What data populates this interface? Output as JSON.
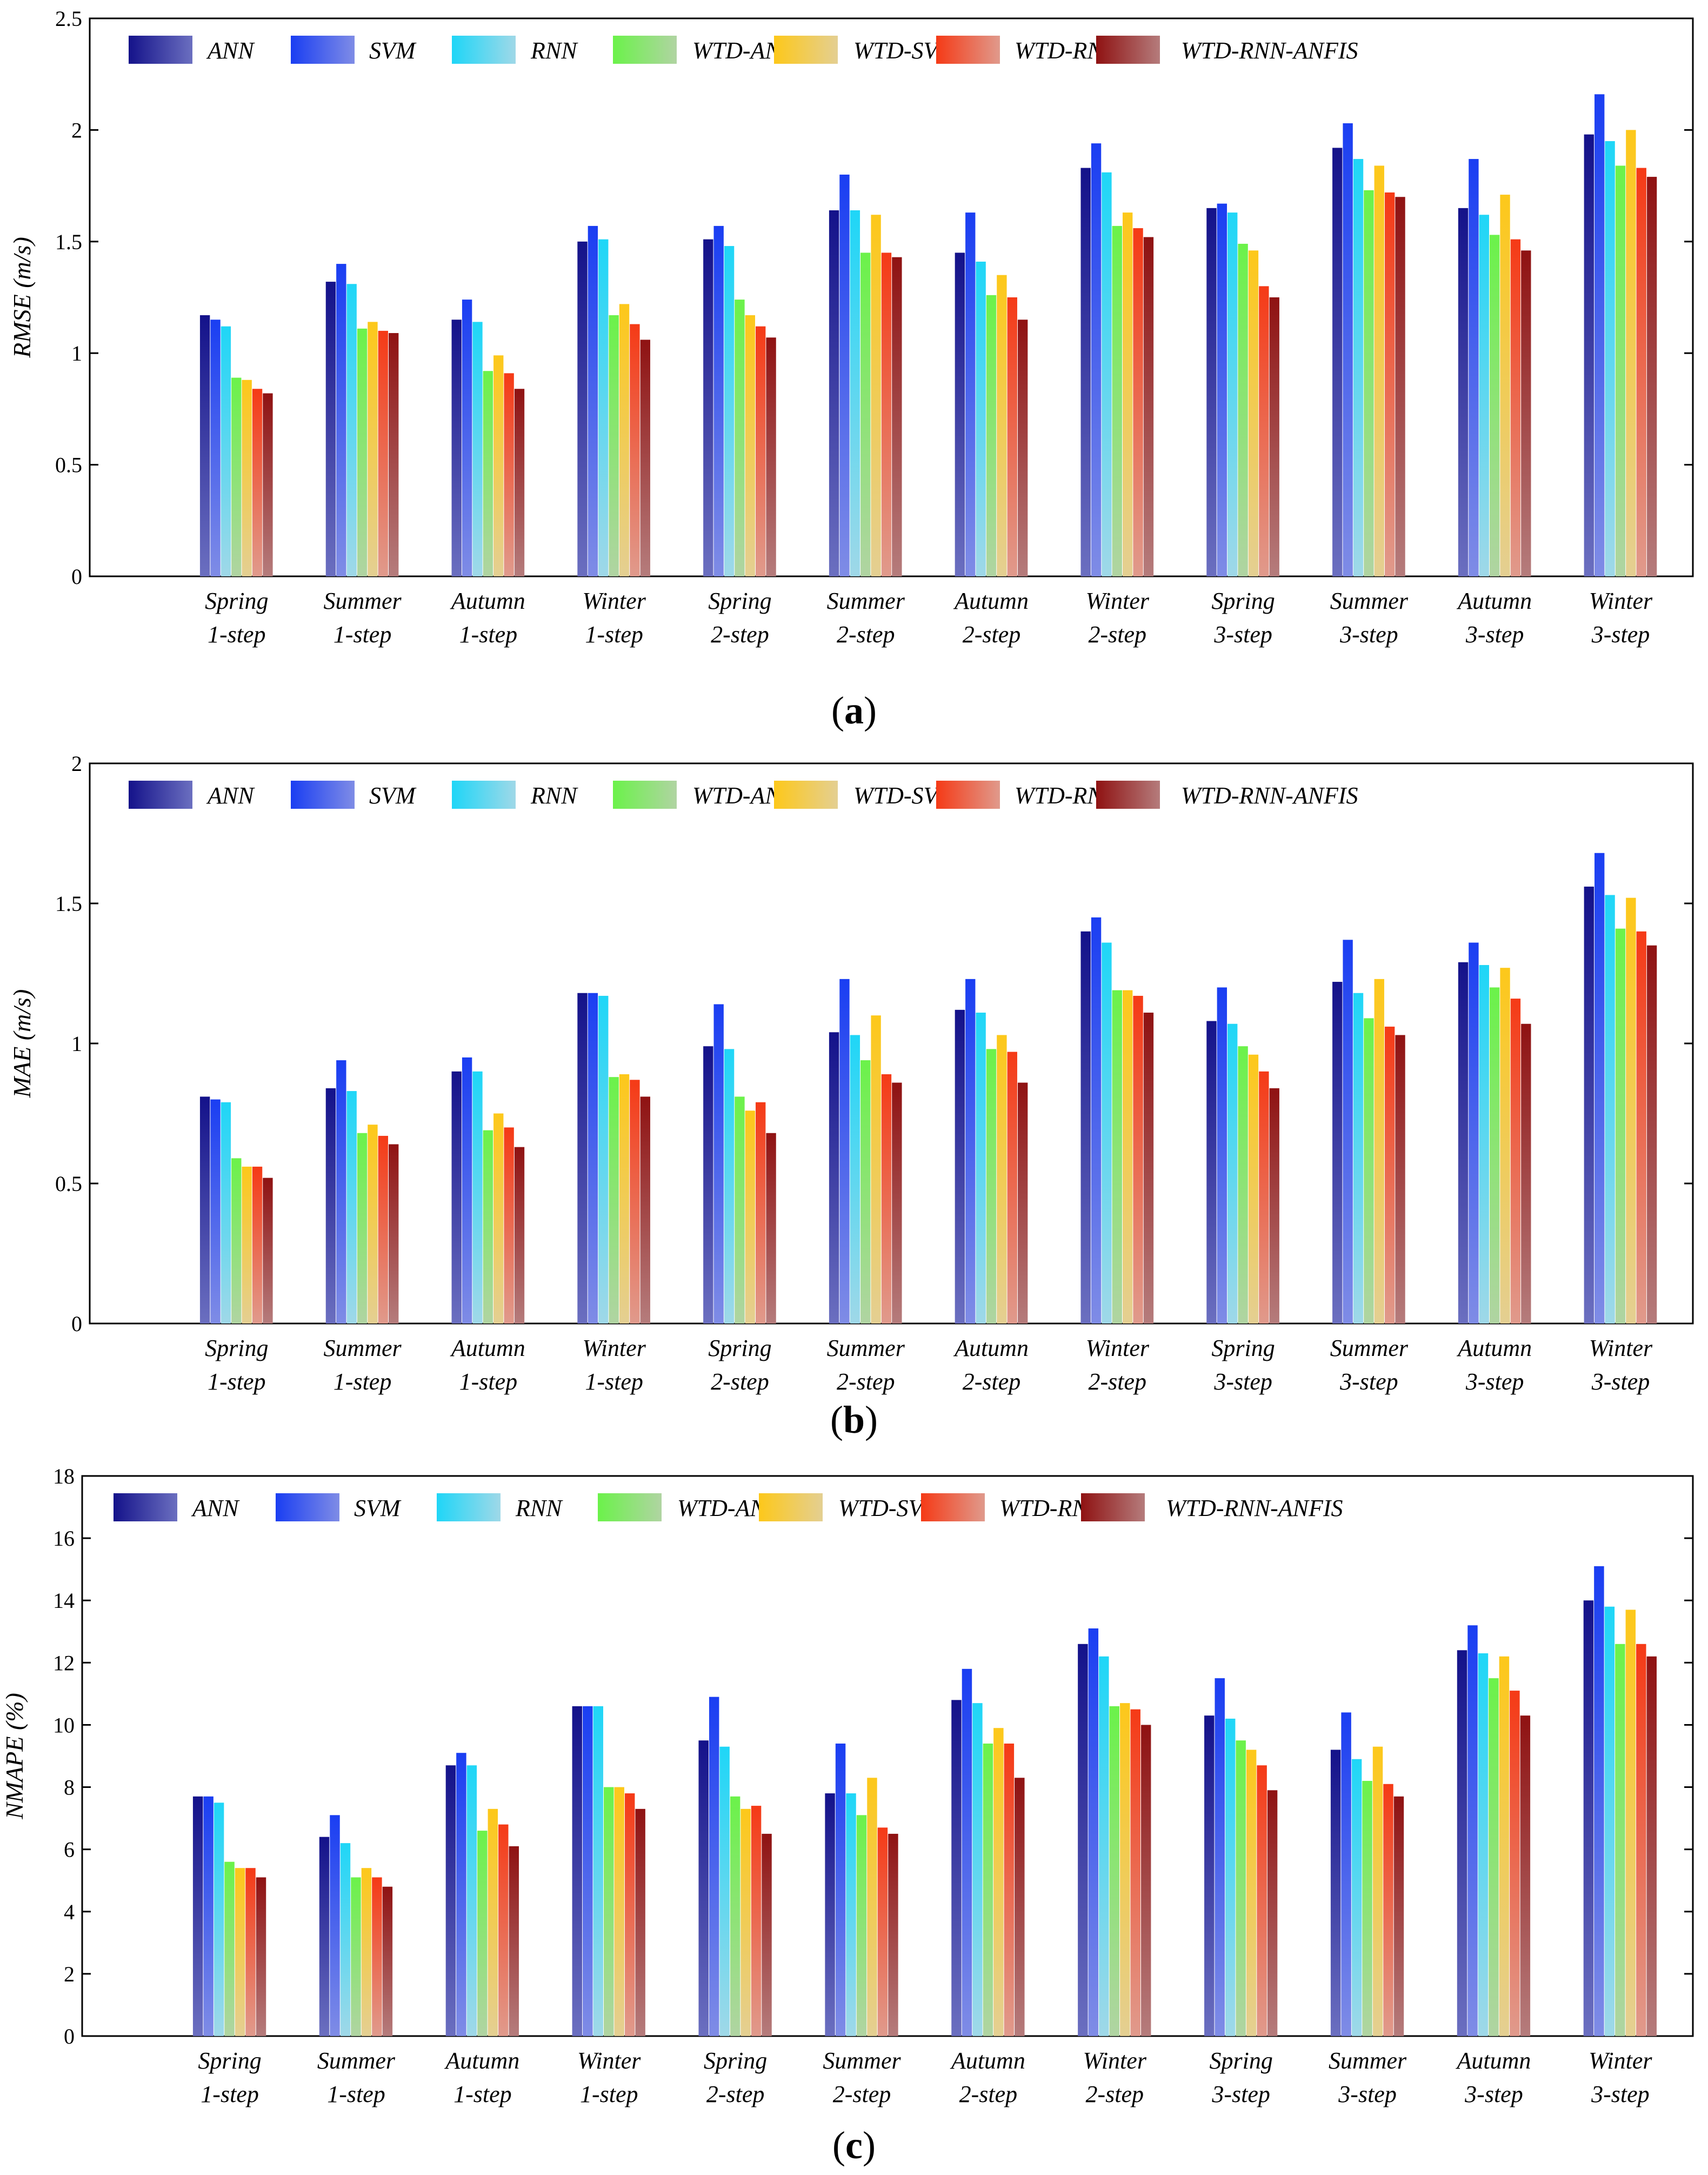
{
  "series_colors": [
    {
      "top": "#14128a",
      "bottom": "#6b6fc0"
    },
    {
      "top": "#1a3ef2",
      "bottom": "#7f8ce6"
    },
    {
      "top": "#1fd6f7",
      "bottom": "#9fd8e8"
    },
    {
      "top": "#6bf24a",
      "bottom": "#b0d4a2"
    },
    {
      "top": "#fdc81a",
      "bottom": "#e4cf92"
    },
    {
      "top": "#f53a16",
      "bottom": "#e09a8c"
    },
    {
      "top": "#8f1212",
      "bottom": "#b57c7c"
    }
  ],
  "chart_data": [
    {
      "type": "bar",
      "panel_label": {
        "open": "(",
        "letter": "a",
        "close": ")"
      },
      "ylabel": "RMSE (m/s)",
      "ylim": [
        0,
        2.5
      ],
      "yticks": [
        "0",
        "0.5",
        "1",
        "1.5",
        "2",
        "2.5"
      ],
      "legend": [
        "ANN",
        "SVM",
        "RNN",
        "WTD-ANN",
        "WTD-SVM",
        "WTD-RNN",
        "WTD-RNN-ANFIS"
      ],
      "categories": [
        [
          "Spring",
          "1-step"
        ],
        [
          "Summer",
          "1-step"
        ],
        [
          "Autumn",
          "1-step"
        ],
        [
          "Winter",
          "1-step"
        ],
        [
          "Spring",
          "2-step"
        ],
        [
          "Summer",
          "2-step"
        ],
        [
          "Autumn",
          "2-step"
        ],
        [
          "Winter",
          "2-step"
        ],
        [
          "Spring",
          "3-step"
        ],
        [
          "Summer",
          "3-step"
        ],
        [
          "Autumn",
          "3-step"
        ],
        [
          "Winter",
          "3-step"
        ]
      ],
      "series": [
        {
          "name": "ANN",
          "values": [
            1.17,
            1.32,
            1.15,
            1.5,
            1.51,
            1.64,
            1.45,
            1.83,
            1.65,
            1.92,
            1.65,
            1.98
          ]
        },
        {
          "name": "SVM",
          "values": [
            1.15,
            1.4,
            1.24,
            1.57,
            1.57,
            1.8,
            1.63,
            1.94,
            1.67,
            2.03,
            1.87,
            2.16
          ]
        },
        {
          "name": "RNN",
          "values": [
            1.12,
            1.31,
            1.14,
            1.51,
            1.48,
            1.64,
            1.41,
            1.81,
            1.63,
            1.87,
            1.62,
            1.95
          ]
        },
        {
          "name": "WTD-ANN",
          "values": [
            0.89,
            1.11,
            0.92,
            1.17,
            1.24,
            1.45,
            1.26,
            1.57,
            1.49,
            1.73,
            1.53,
            1.84
          ]
        },
        {
          "name": "WTD-SVM",
          "values": [
            0.88,
            1.14,
            0.99,
            1.22,
            1.17,
            1.62,
            1.35,
            1.63,
            1.46,
            1.84,
            1.71,
            2.0
          ]
        },
        {
          "name": "WTD-RNN",
          "values": [
            0.84,
            1.1,
            0.91,
            1.13,
            1.12,
            1.45,
            1.25,
            1.56,
            1.3,
            1.72,
            1.51,
            1.83
          ]
        },
        {
          "name": "WTD-RNN-ANFIS",
          "values": [
            0.82,
            1.09,
            0.84,
            1.06,
            1.07,
            1.43,
            1.15,
            1.52,
            1.25,
            1.7,
            1.46,
            1.79
          ]
        }
      ]
    },
    {
      "type": "bar",
      "panel_label": {
        "open": "(",
        "letter": "b",
        "close": ")"
      },
      "ylabel": "MAE (m/s)",
      "ylim": [
        0,
        2
      ],
      "yticks": [
        "0",
        "0.5",
        "1",
        "1.5",
        "2"
      ],
      "legend": [
        "ANN",
        "SVM",
        "RNN",
        "WTD-ANN",
        "WTD-SVM",
        "WTD-RNN",
        "WTD-RNN-ANFIS"
      ],
      "categories": [
        [
          "Spring",
          "1-step"
        ],
        [
          "Summer",
          "1-step"
        ],
        [
          "Autumn",
          "1-step"
        ],
        [
          "Winter",
          "1-step"
        ],
        [
          "Spring",
          "2-step"
        ],
        [
          "Summer",
          "2-step"
        ],
        [
          "Autumn",
          "2-step"
        ],
        [
          "Winter",
          "2-step"
        ],
        [
          "Spring",
          "3-step"
        ],
        [
          "Summer",
          "3-step"
        ],
        [
          "Autumn",
          "3-step"
        ],
        [
          "Winter",
          "3-step"
        ]
      ],
      "series": [
        {
          "name": "ANN",
          "values": [
            0.81,
            0.84,
            0.9,
            1.18,
            0.99,
            1.04,
            1.12,
            1.4,
            1.08,
            1.22,
            1.29,
            1.56
          ]
        },
        {
          "name": "SVM",
          "values": [
            0.8,
            0.94,
            0.95,
            1.18,
            1.14,
            1.23,
            1.23,
            1.45,
            1.2,
            1.37,
            1.36,
            1.68
          ]
        },
        {
          "name": "RNN",
          "values": [
            0.79,
            0.83,
            0.9,
            1.17,
            0.98,
            1.03,
            1.11,
            1.36,
            1.07,
            1.18,
            1.28,
            1.53
          ]
        },
        {
          "name": "WTD-ANN",
          "values": [
            0.59,
            0.68,
            0.69,
            0.88,
            0.81,
            0.94,
            0.98,
            1.19,
            0.99,
            1.09,
            1.2,
            1.41
          ]
        },
        {
          "name": "WTD-SVM",
          "values": [
            0.56,
            0.71,
            0.75,
            0.89,
            0.76,
            1.1,
            1.03,
            1.19,
            0.96,
            1.23,
            1.27,
            1.52
          ]
        },
        {
          "name": "WTD-RNN",
          "values": [
            0.56,
            0.67,
            0.7,
            0.87,
            0.79,
            0.89,
            0.97,
            1.17,
            0.9,
            1.06,
            1.16,
            1.4
          ]
        },
        {
          "name": "WTD-RNN-ANFIS",
          "values": [
            0.52,
            0.64,
            0.63,
            0.81,
            0.68,
            0.86,
            0.86,
            1.11,
            0.84,
            1.03,
            1.07,
            1.35
          ]
        }
      ]
    },
    {
      "type": "bar",
      "panel_label": {
        "open": "(",
        "letter": "c",
        "close": ")"
      },
      "ylabel": "NMAPE (%)",
      "ylim": [
        0,
        18
      ],
      "yticks": [
        "0",
        "2",
        "4",
        "6",
        "8",
        "10",
        "12",
        "14",
        "16",
        "18"
      ],
      "legend": [
        "ANN",
        "SVM",
        "RNN",
        "WTD-ANN",
        "WTD-SVM",
        "WTD-RNN",
        "WTD-RNN-ANFIS"
      ],
      "categories": [
        [
          "Spring",
          "1-step"
        ],
        [
          "Summer",
          "1-step"
        ],
        [
          "Autumn",
          "1-step"
        ],
        [
          "Winter",
          "1-step"
        ],
        [
          "Spring",
          "2-step"
        ],
        [
          "Summer",
          "2-step"
        ],
        [
          "Autumn",
          "2-step"
        ],
        [
          "Winter",
          "2-step"
        ],
        [
          "Spring",
          "3-step"
        ],
        [
          "Summer",
          "3-step"
        ],
        [
          "Autumn",
          "3-step"
        ],
        [
          "Winter",
          "3-step"
        ]
      ],
      "series": [
        {
          "name": "ANN",
          "values": [
            7.7,
            6.4,
            8.7,
            10.6,
            9.5,
            7.8,
            10.8,
            12.6,
            10.3,
            9.2,
            12.4,
            14.0
          ]
        },
        {
          "name": "SVM",
          "values": [
            7.7,
            7.1,
            9.1,
            10.6,
            10.9,
            9.4,
            11.8,
            13.1,
            11.5,
            10.4,
            13.2,
            15.1
          ]
        },
        {
          "name": "RNN",
          "values": [
            7.5,
            6.2,
            8.7,
            10.6,
            9.3,
            7.8,
            10.7,
            12.2,
            10.2,
            8.9,
            12.3,
            13.8
          ]
        },
        {
          "name": "WTD-ANN",
          "values": [
            5.6,
            5.1,
            6.6,
            8.0,
            7.7,
            7.1,
            9.4,
            10.6,
            9.5,
            8.2,
            11.5,
            12.6
          ]
        },
        {
          "name": "WTD-SVM",
          "values": [
            5.4,
            5.4,
            7.3,
            8.0,
            7.3,
            8.3,
            9.9,
            10.7,
            9.2,
            9.3,
            12.2,
            13.7
          ]
        },
        {
          "name": "WTD-RNN",
          "values": [
            5.4,
            5.1,
            6.8,
            7.8,
            7.4,
            6.7,
            9.4,
            10.5,
            8.7,
            8.1,
            11.1,
            12.6
          ]
        },
        {
          "name": "WTD-RNN-ANFIS",
          "values": [
            5.1,
            4.8,
            6.1,
            7.3,
            6.5,
            6.5,
            8.3,
            10.0,
            7.9,
            7.7,
            10.3,
            12.2
          ]
        }
      ]
    }
  ]
}
